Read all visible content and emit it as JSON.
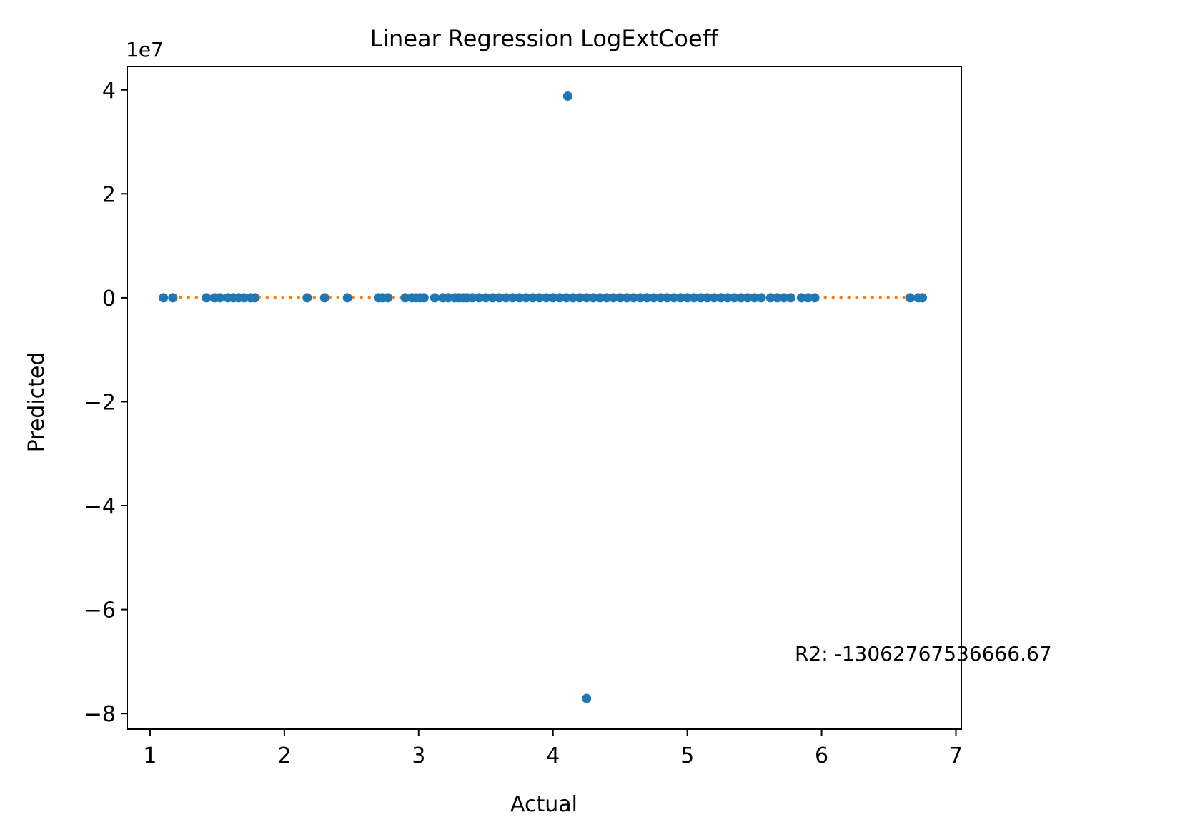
{
  "chart_data": {
    "type": "scatter",
    "title": "Linear Regression LogExtCoeff",
    "xlabel": "Actual",
    "ylabel": "Predicted",
    "y_offset_label": "1e7",
    "xlim": [
      0.83,
      7.04
    ],
    "ylim": [
      -8.3,
      4.45
    ],
    "x_ticks": [
      1,
      2,
      3,
      4,
      5,
      6,
      7
    ],
    "x_tick_labels": [
      "1",
      "2",
      "3",
      "4",
      "5",
      "6",
      "7"
    ],
    "y_ticks": [
      -8,
      -6,
      -4,
      -2,
      0,
      2,
      4
    ],
    "y_tick_labels": [
      "−8",
      "−6",
      "−4",
      "−2",
      "0",
      "2",
      "4"
    ],
    "grid": false,
    "annotation": "R2: -13062767536666.67",
    "colors": {
      "points": "#1f77b4",
      "fit_line": "#ff7f0e"
    },
    "series": [
      {
        "values": [
          [
            1.1,
            0
          ],
          [
            1.17,
            0
          ],
          [
            1.42,
            0
          ],
          [
            1.48,
            0
          ],
          [
            1.52,
            0
          ],
          [
            1.58,
            0
          ],
          [
            1.62,
            0
          ],
          [
            1.66,
            0
          ],
          [
            1.7,
            0
          ],
          [
            1.75,
            0
          ],
          [
            1.78,
            0
          ],
          [
            2.17,
            0
          ],
          [
            2.3,
            0
          ],
          [
            2.47,
            0
          ],
          [
            2.7,
            0
          ],
          [
            2.73,
            0
          ],
          [
            2.77,
            0
          ],
          [
            2.9,
            0
          ],
          [
            2.95,
            0
          ],
          [
            2.98,
            0
          ],
          [
            3.01,
            0
          ],
          [
            3.04,
            0
          ],
          [
            3.12,
            0
          ],
          [
            3.18,
            0
          ],
          [
            3.22,
            0
          ],
          [
            3.27,
            0
          ],
          [
            3.3,
            0
          ],
          [
            3.33,
            0
          ],
          [
            3.36,
            0
          ],
          [
            3.4,
            0
          ],
          [
            3.45,
            0
          ],
          [
            3.5,
            0
          ],
          [
            3.55,
            0
          ],
          [
            3.6,
            0
          ],
          [
            3.65,
            0
          ],
          [
            3.7,
            0
          ],
          [
            3.75,
            0
          ],
          [
            3.8,
            0
          ],
          [
            3.85,
            0
          ],
          [
            3.9,
            0
          ],
          [
            3.95,
            0
          ],
          [
            4.0,
            0
          ],
          [
            4.05,
            0
          ],
          [
            4.1,
            0
          ],
          [
            4.15,
            0
          ],
          [
            4.2,
            0
          ],
          [
            4.25,
            0
          ],
          [
            4.3,
            0
          ],
          [
            4.35,
            0
          ],
          [
            4.4,
            0
          ],
          [
            4.45,
            0
          ],
          [
            4.5,
            0
          ],
          [
            4.55,
            0
          ],
          [
            4.6,
            0
          ],
          [
            4.65,
            0
          ],
          [
            4.7,
            0
          ],
          [
            4.75,
            0
          ],
          [
            4.8,
            0
          ],
          [
            4.85,
            0
          ],
          [
            4.9,
            0
          ],
          [
            4.95,
            0
          ],
          [
            5.0,
            0
          ],
          [
            5.05,
            0
          ],
          [
            5.1,
            0
          ],
          [
            5.15,
            0
          ],
          [
            5.2,
            0
          ],
          [
            5.25,
            0
          ],
          [
            5.3,
            0
          ],
          [
            5.35,
            0
          ],
          [
            5.4,
            0
          ],
          [
            5.45,
            0
          ],
          [
            5.5,
            0
          ],
          [
            5.55,
            0
          ],
          [
            5.62,
            0
          ],
          [
            5.67,
            0
          ],
          [
            5.72,
            0
          ],
          [
            5.77,
            0
          ],
          [
            5.85,
            0
          ],
          [
            5.9,
            0
          ],
          [
            5.95,
            0
          ],
          [
            6.66,
            0
          ],
          [
            6.72,
            0
          ],
          [
            6.75,
            0
          ],
          [
            4.11,
            3.88
          ],
          [
            4.25,
            -7.71
          ]
        ]
      }
    ],
    "fit_line": {
      "x": [
        1.1,
        6.75
      ],
      "y": [
        0,
        0
      ]
    }
  }
}
